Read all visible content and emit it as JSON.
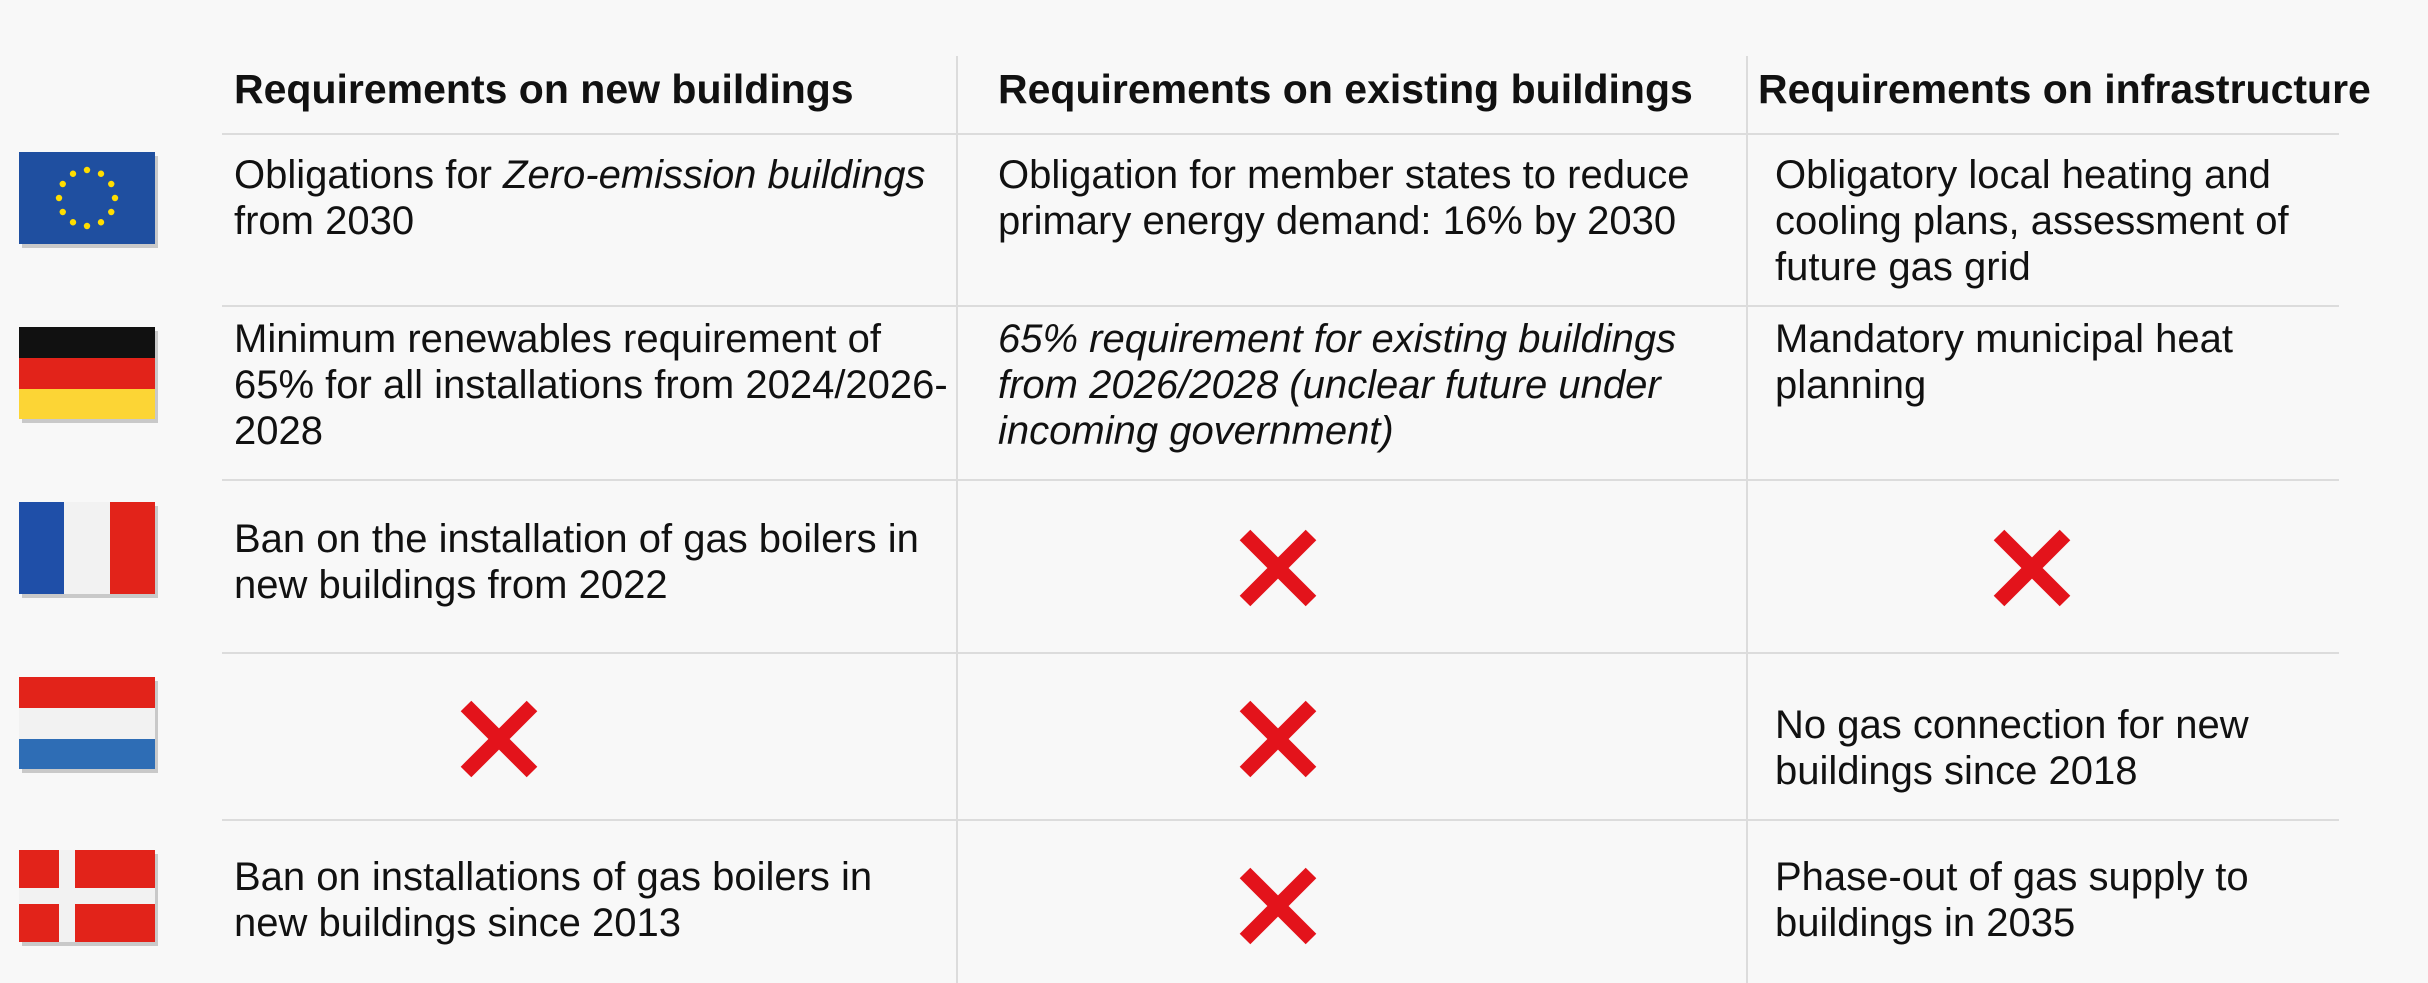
{
  "table": {
    "header": [
      "Requirements on new buildings",
      "Requirements on existing buildings",
      "Requirements on infrastructure"
    ],
    "rows": [
      [
        [
          {
            "text": "Obligations for "
          },
          {
            "text": "Zero-emission buildings",
            "italic": true
          },
          {
            "text": " from 2030"
          }
        ],
        [
          {
            "text": "Obligation for member states to reduce primary energy demand: 16% by 2030"
          }
        ],
        [
          {
            "text": "Obligatory local heating and cooling plans, assessment of future gas grid"
          }
        ]
      ],
      [
        [
          {
            "text": "Minimum renewables requirement of 65% for all installations from 2024/2026-2028"
          }
        ],
        [
          {
            "text": "65% requirement for existing buildings from 2026/2028 (unclear future under incoming government)",
            "italic": true
          }
        ],
        [
          {
            "text": "Mandatory municipal heat planning"
          }
        ]
      ],
      [
        [
          {
            "text": "Ban on the installation of gas boilers in new buildings from 2022"
          }
        ],
        null,
        null
      ],
      [
        null,
        null,
        [
          {
            "text": "No gas connection for new buildings since 2018"
          }
        ]
      ],
      [
        [
          {
            "text": "Ban on installations of gas boilers in new buildings since 2013"
          }
        ],
        null,
        [
          {
            "text": "Phase-out of gas supply to buildings in 2035"
          }
        ]
      ]
    ]
  }
}
